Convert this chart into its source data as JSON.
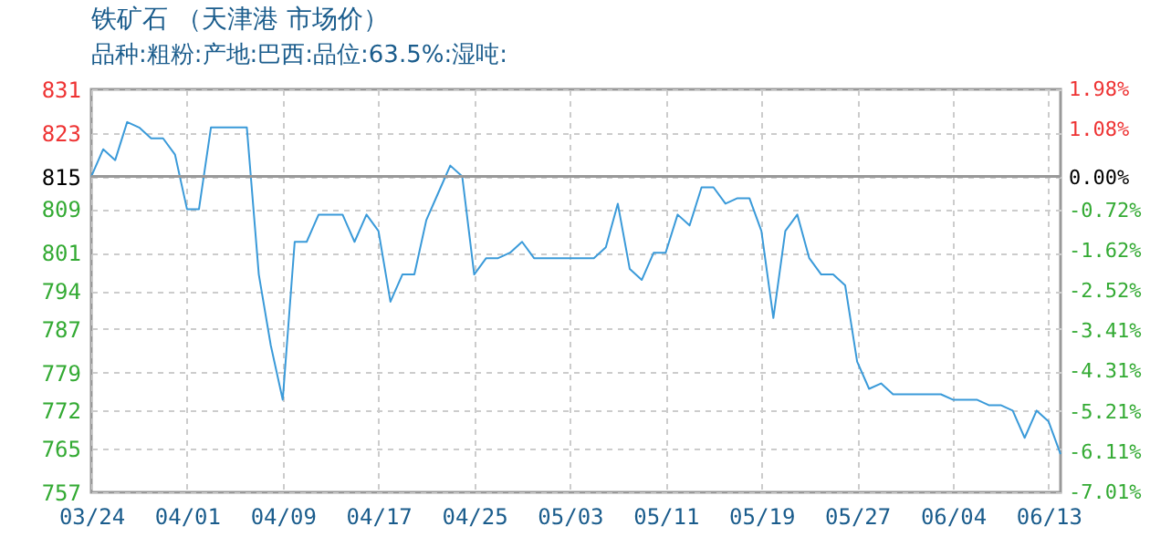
{
  "chart_data": {
    "type": "line",
    "title": "铁矿石 （天津港 市场价）",
    "subtitle": "品种:粗粉:产地:巴西:品位:63.5%:湿吨:",
    "categories": [
      "03/24",
      null,
      null,
      null,
      null,
      null,
      null,
      null,
      "04/01",
      null,
      null,
      null,
      null,
      null,
      null,
      null,
      "04/09",
      null,
      null,
      null,
      null,
      null,
      null,
      null,
      "04/17",
      null,
      null,
      null,
      null,
      null,
      null,
      null,
      "04/25",
      null,
      null,
      null,
      null,
      null,
      null,
      null,
      "05/03",
      null,
      null,
      null,
      null,
      null,
      null,
      null,
      "05/11",
      null,
      null,
      null,
      null,
      null,
      null,
      null,
      "05/19",
      null,
      null,
      null,
      null,
      null,
      null,
      null,
      "05/27",
      null,
      null,
      null,
      null,
      null,
      null,
      null,
      "06/04",
      null,
      null,
      null,
      null,
      null,
      null,
      null,
      "06/13",
      null
    ],
    "series": [
      {
        "color": "#3a9ad9",
        "values": [
          815,
          820,
          818,
          825,
          824,
          822,
          822,
          819,
          809,
          809,
          824,
          824,
          824,
          824,
          797,
          784,
          774,
          803,
          803,
          808,
          808,
          808,
          803,
          808,
          805,
          792,
          797,
          797,
          807,
          812,
          817,
          815,
          797,
          800,
          800,
          801,
          803,
          800,
          800,
          800,
          800,
          800,
          800,
          802,
          810,
          798,
          796,
          801,
          801,
          808,
          806,
          813,
          813,
          810,
          811,
          811,
          805,
          789,
          805,
          808,
          800,
          797,
          797,
          795,
          781,
          776,
          777,
          775,
          775,
          775,
          775,
          775,
          774,
          774,
          774,
          773,
          773,
          772,
          767,
          772,
          770,
          764
        ]
      }
    ],
    "ylim": [
      757,
      831
    ],
    "yticks": [
      831,
      823,
      815,
      809,
      801,
      794,
      787,
      779,
      772,
      765,
      757
    ],
    "y2lim": [
      -7.01,
      1.98
    ],
    "y2ticks": [
      {
        "value": 1.98,
        "label": "1.98%"
      },
      {
        "value": 1.08,
        "label": "1.08%"
      },
      {
        "value": 0,
        "label": "0.00%"
      },
      {
        "value": -0.72,
        "label": "-0.72%"
      },
      {
        "value": -1.62,
        "label": "-1.62%"
      },
      {
        "value": -2.52,
        "label": "-2.52%"
      },
      {
        "value": -3.41,
        "label": "-3.41%"
      },
      {
        "value": -4.31,
        "label": "-4.31%"
      },
      {
        "value": -5.21,
        "label": "-5.21%"
      },
      {
        "value": -6.11,
        "label": "-6.11%"
      },
      {
        "value": -7.01,
        "label": "-7.01%"
      }
    ],
    "ref_lines": [
      {
        "axis": "y",
        "value": 815,
        "color": "#999999"
      }
    ],
    "grid": true,
    "line_style": "solid"
  }
}
